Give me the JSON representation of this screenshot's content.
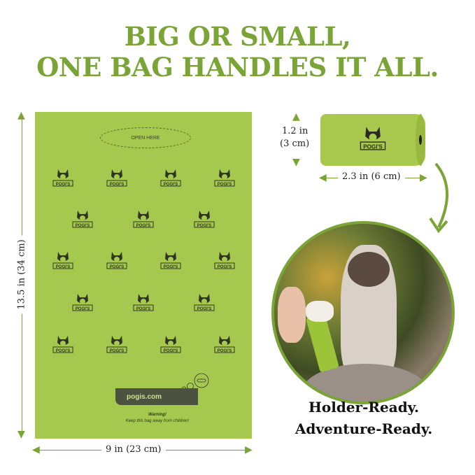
{
  "headline": {
    "line1": "BIG OR SMALL,",
    "line2": "ONE BAG HANDLES IT ALL."
  },
  "bag": {
    "open_here": "OPEN HERE",
    "website": "pogis.com",
    "warning_title": "Warning!",
    "warning_text": "Keep this bag away from children!",
    "height_label": "13.5 in (34 cm)",
    "width_label": "9 in (23 cm)",
    "logo_text": "POGI'S",
    "color": "#a5c94f"
  },
  "roll": {
    "height_label_1": "1.2 in",
    "height_label_2": "(3 cm)",
    "width_label": "2.3 in (6 cm)",
    "logo_text": "POGI'S"
  },
  "tagline": {
    "line1": "Holder-Ready.",
    "line2": "Adventure-Ready."
  },
  "colors": {
    "accent": "#7aa536",
    "bag": "#a5c94f"
  }
}
